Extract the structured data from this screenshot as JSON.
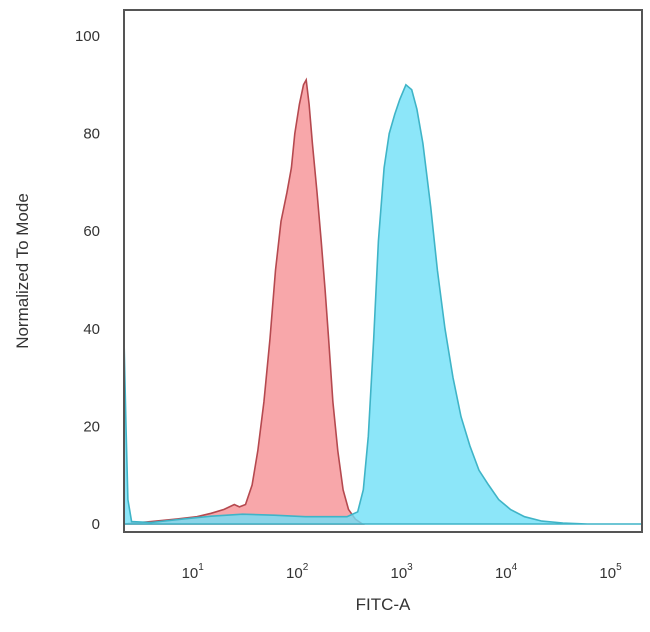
{
  "chart_data": {
    "type": "area",
    "xlabel": "FITC-A",
    "ylabel": "Normalized To Mode",
    "x_scale": "log",
    "xlim": [
      2.2,
      200000
    ],
    "ylim": [
      0,
      100
    ],
    "y_ticks": [
      0,
      20,
      40,
      60,
      80,
      100
    ],
    "x_ticks": [
      {
        "value": 10,
        "base": "10",
        "exp": "1"
      },
      {
        "value": 100,
        "base": "10",
        "exp": "2"
      },
      {
        "value": 1000,
        "base": "10",
        "exp": "3"
      },
      {
        "value": 10000,
        "base": "10",
        "exp": "4"
      },
      {
        "value": 100000,
        "base": "10",
        "exp": "5"
      }
    ],
    "grid": false,
    "legend": "none",
    "series": [
      {
        "color": "#f58a8e",
        "stroke": "#b5494f",
        "opacity": 0.75,
        "points": [
          [
            2.2,
            0
          ],
          [
            4,
            0.5
          ],
          [
            7,
            1
          ],
          [
            11,
            1.5
          ],
          [
            15,
            2.2
          ],
          [
            20,
            3
          ],
          [
            25,
            4
          ],
          [
            28,
            3.5
          ],
          [
            32,
            4
          ],
          [
            37,
            8
          ],
          [
            42,
            15
          ],
          [
            48,
            25
          ],
          [
            55,
            38
          ],
          [
            62,
            52
          ],
          [
            70,
            62
          ],
          [
            80,
            68
          ],
          [
            88,
            73
          ],
          [
            95,
            80
          ],
          [
            105,
            86
          ],
          [
            115,
            90
          ],
          [
            122,
            91
          ],
          [
            130,
            86
          ],
          [
            140,
            78
          ],
          [
            155,
            68
          ],
          [
            170,
            58
          ],
          [
            185,
            48
          ],
          [
            200,
            38
          ],
          [
            220,
            25
          ],
          [
            245,
            15
          ],
          [
            275,
            7
          ],
          [
            310,
            3
          ],
          [
            360,
            1
          ],
          [
            420,
            0
          ]
        ]
      },
      {
        "color": "#6fe0f7",
        "stroke": "#3fb4c7",
        "opacity": 0.8,
        "points": [
          [
            2.2,
            38
          ],
          [
            2.3,
            20
          ],
          [
            2.4,
            5
          ],
          [
            2.6,
            0.5
          ],
          [
            4,
            0.3
          ],
          [
            8,
            1
          ],
          [
            15,
            1.6
          ],
          [
            30,
            2
          ],
          [
            60,
            1.8
          ],
          [
            120,
            1.5
          ],
          [
            200,
            1.5
          ],
          [
            300,
            1.5
          ],
          [
            380,
            2.5
          ],
          [
            430,
            7
          ],
          [
            480,
            18
          ],
          [
            540,
            38
          ],
          [
            600,
            58
          ],
          [
            680,
            73
          ],
          [
            760,
            80
          ],
          [
            860,
            84
          ],
          [
            960,
            87
          ],
          [
            1100,
            90
          ],
          [
            1250,
            89
          ],
          [
            1400,
            85
          ],
          [
            1600,
            78
          ],
          [
            1900,
            65
          ],
          [
            2200,
            52
          ],
          [
            2600,
            40
          ],
          [
            3100,
            30
          ],
          [
            3700,
            22
          ],
          [
            4500,
            16
          ],
          [
            5500,
            11
          ],
          [
            6800,
            8
          ],
          [
            8500,
            5
          ],
          [
            11000,
            3
          ],
          [
            15000,
            1.5
          ],
          [
            22000,
            0.6
          ],
          [
            35000,
            0.2
          ],
          [
            60000,
            0
          ],
          [
            100000,
            0
          ],
          [
            200000,
            0
          ]
        ]
      }
    ]
  }
}
